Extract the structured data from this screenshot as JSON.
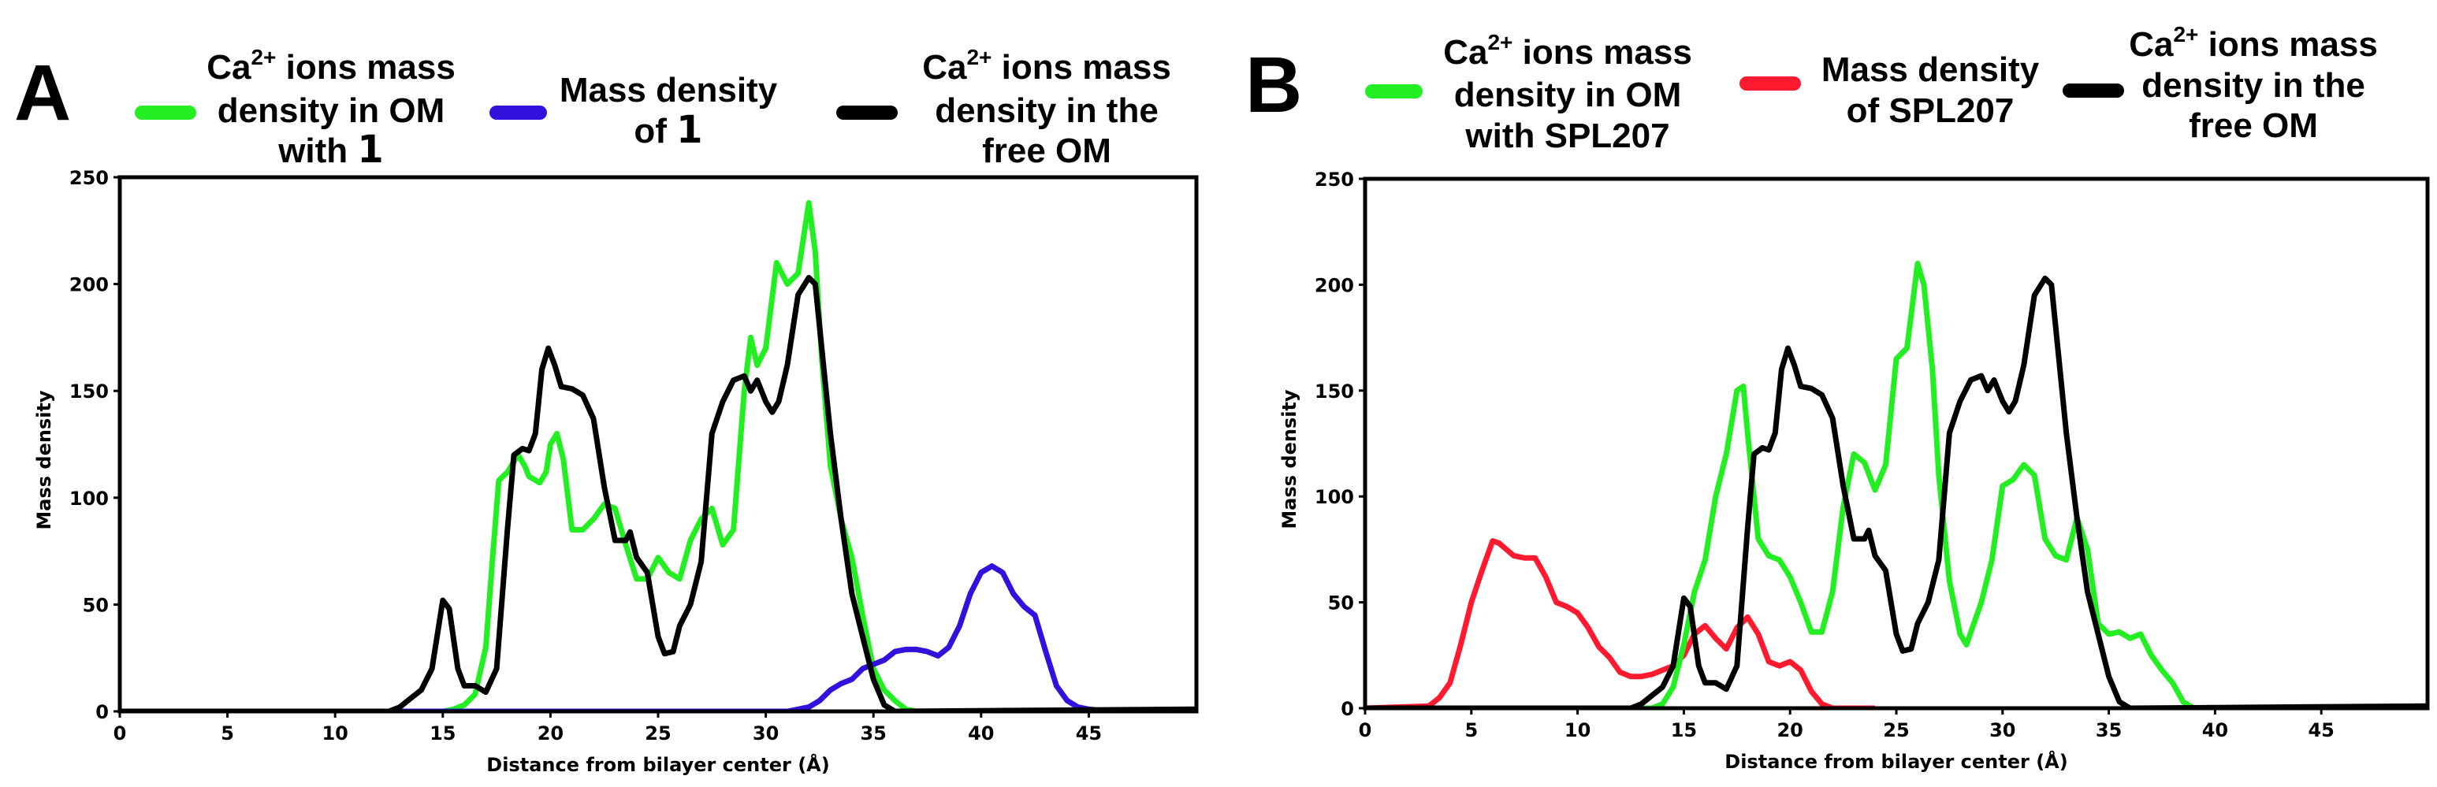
{
  "colors": {
    "green": "#22ee22",
    "blue": "#3311dd",
    "red": "#ff1a30",
    "black": "#000000"
  },
  "chart_data": [
    {
      "type": "line",
      "panel_label": "A",
      "xlabel": "Distance from bilayer center (Å)",
      "ylabel": "Mass density",
      "xlim": [
        0,
        50
      ],
      "ylim": [
        0,
        250
      ],
      "xticks": [
        0,
        5,
        10,
        15,
        20,
        25,
        30,
        35,
        40,
        45
      ],
      "yticks": [
        0,
        50,
        100,
        150,
        200,
        250
      ],
      "legend_placement": "top",
      "legend": [
        {
          "pre": "Ca",
          "sup": "2+",
          "post": " ions mass",
          "lines": [
            "density in OM"
          ],
          "last_pre": "with ",
          "last_bold": "1",
          "color": "green"
        },
        {
          "lines": [
            "Mass density"
          ],
          "last_pre": "of ",
          "last_bold": "1",
          "color": "blue"
        },
        {
          "pre": "Ca",
          "sup": "2+",
          "post": " ions mass",
          "lines": [
            "density in the"
          ],
          "last_pre": "free OM",
          "last_bold": "",
          "color": "black"
        }
      ],
      "series": [
        {
          "name": "Ca2+ ions mass density in OM with 1",
          "color": "green",
          "x": [
            0,
            15,
            15.5,
            16,
            16.5,
            17,
            17.3,
            17.6,
            18,
            18.5,
            18.8,
            19,
            19.5,
            19.8,
            20,
            20.3,
            20.6,
            21,
            21.5,
            22,
            22.5,
            23,
            23.5,
            24,
            24.5,
            25,
            25.5,
            26,
            26.5,
            27,
            27.5,
            28,
            28.5,
            29,
            29.3,
            29.6,
            30,
            30.5,
            31,
            31.5,
            32,
            32.3,
            32.6,
            33,
            33.5,
            34,
            34.5,
            35,
            35.5,
            36,
            36.5,
            37,
            50
          ],
          "y": [
            0,
            0,
            1,
            3,
            8,
            30,
            70,
            108,
            112,
            120,
            115,
            110,
            107,
            112,
            125,
            130,
            118,
            85,
            85,
            90,
            97,
            95,
            78,
            62,
            62,
            72,
            65,
            62,
            80,
            90,
            95,
            78,
            85,
            150,
            175,
            162,
            170,
            210,
            200,
            205,
            238,
            215,
            165,
            115,
            90,
            72,
            45,
            20,
            10,
            5,
            1,
            0,
            0
          ]
        },
        {
          "name": "Mass density of 1",
          "color": "blue",
          "x": [
            0,
            31,
            32,
            32.5,
            33,
            33.5,
            34,
            34.5,
            35,
            35.5,
            36,
            36.5,
            37,
            37.5,
            38,
            38.5,
            39,
            39.5,
            40,
            40.5,
            41,
            41.5,
            42,
            42.5,
            43,
            43.5,
            44,
            44.5,
            45,
            46,
            50
          ],
          "y": [
            0,
            0,
            2,
            5,
            10,
            13,
            15,
            20,
            22,
            24,
            28,
            29,
            29,
            28,
            26,
            30,
            40,
            55,
            65,
            68,
            65,
            55,
            49,
            45,
            28,
            12,
            5,
            2,
            1,
            0,
            0
          ]
        },
        {
          "name": "Ca2+ ions mass density in the free OM",
          "color": "black",
          "x": [
            0,
            12.5,
            13,
            13.5,
            14,
            14.5,
            15,
            15.3,
            15.7,
            16,
            16.5,
            17,
            17.5,
            18,
            18.3,
            18.7,
            19,
            19.3,
            19.6,
            19.9,
            20.2,
            20.5,
            21,
            21.5,
            22,
            22.5,
            23,
            23.5,
            23.7,
            24,
            24.5,
            25,
            25.3,
            25.7,
            26,
            26.5,
            27,
            27.5,
            28,
            28.5,
            29,
            29.3,
            29.6,
            30,
            30.3,
            30.6,
            31,
            31.5,
            32,
            32.3,
            32.6,
            33,
            33.5,
            34,
            34.5,
            35,
            35.5,
            36,
            50
          ],
          "y": [
            0,
            0,
            2,
            6,
            10,
            20,
            52,
            48,
            20,
            12,
            12,
            9,
            20,
            85,
            120,
            123,
            122,
            130,
            160,
            170,
            162,
            152,
            151,
            148,
            137,
            105,
            80,
            80,
            84,
            72,
            65,
            35,
            27,
            28,
            40,
            50,
            70,
            130,
            145,
            155,
            157,
            150,
            155,
            145,
            140,
            145,
            162,
            195,
            203,
            200,
            170,
            130,
            90,
            55,
            35,
            15,
            3,
            0,
            1
          ]
        }
      ]
    },
    {
      "type": "line",
      "panel_label": "B",
      "xlabel": "Distance from bilayer center (Å)",
      "ylabel": "Mass density",
      "xlim": [
        0,
        50
      ],
      "ylim": [
        0,
        250
      ],
      "xticks": [
        0,
        5,
        10,
        15,
        20,
        25,
        30,
        35,
        40,
        45
      ],
      "yticks": [
        0,
        50,
        100,
        150,
        200,
        250
      ],
      "legend_placement": "top",
      "legend": [
        {
          "pre": "Ca",
          "sup": "2+",
          "post": " ions mass",
          "lines": [
            "density in OM"
          ],
          "last_pre": "with SPL207",
          "last_bold": "",
          "color": "green"
        },
        {
          "lines": [
            "Mass density"
          ],
          "last_pre": "of SPL207",
          "last_bold": "",
          "color": "red"
        },
        {
          "pre": "Ca",
          "sup": "2+",
          "post": " ions mass",
          "lines": [
            "density in the"
          ],
          "last_pre": "free OM",
          "last_bold": "",
          "color": "black"
        }
      ],
      "series": [
        {
          "name": "Mass density of SPL207",
          "color": "red",
          "x": [
            0,
            3,
            3.5,
            4,
            4.5,
            5,
            5.5,
            6,
            6.3,
            7,
            7.5,
            8,
            8.5,
            9,
            9.5,
            10,
            10.5,
            11,
            11.5,
            12,
            12.5,
            13,
            13.5,
            14,
            14.5,
            15,
            15.5,
            16,
            16.5,
            17,
            17.5,
            18,
            18.5,
            19,
            19.5,
            20,
            20.5,
            21,
            21.5,
            22,
            24
          ],
          "y": [
            0,
            1,
            5,
            12,
            30,
            50,
            65,
            79,
            78,
            72,
            71,
            71,
            62,
            50,
            48,
            45,
            38,
            29,
            24,
            17,
            15,
            15,
            16,
            18,
            20,
            25,
            35,
            39,
            33,
            28,
            38,
            43,
            35,
            22,
            20,
            22,
            18,
            8,
            2,
            0,
            0
          ]
        },
        {
          "name": "Ca2+ ions mass density in OM with SPL207",
          "color": "green",
          "x": [
            0,
            13.5,
            14,
            14.5,
            15,
            15.5,
            16,
            16.5,
            17,
            17.5,
            17.8,
            18,
            18.5,
            19,
            19.5,
            20,
            20.5,
            21,
            21.5,
            22,
            22.5,
            23,
            23.5,
            24,
            24.5,
            25,
            25.5,
            26,
            26.3,
            26.7,
            27,
            27.5,
            28,
            28.3,
            29,
            29.5,
            30,
            30.5,
            31,
            31.5,
            32,
            32.5,
            33,
            33.5,
            34,
            34.5,
            35,
            35.5,
            36,
            36.5,
            37,
            37.5,
            38,
            38.5,
            39,
            50
          ],
          "y": [
            0,
            0,
            2,
            10,
            30,
            55,
            70,
            100,
            120,
            150,
            152,
            130,
            80,
            72,
            70,
            62,
            50,
            36,
            36,
            55,
            95,
            120,
            116,
            103,
            115,
            165,
            170,
            210,
            200,
            160,
            110,
            60,
            35,
            30,
            50,
            70,
            105,
            108,
            115,
            110,
            80,
            72,
            70,
            90,
            75,
            40,
            35,
            36,
            33,
            35,
            25,
            18,
            12,
            3,
            0,
            0
          ]
        },
        {
          "name": "Ca2+ ions mass density in the free OM",
          "color": "black",
          "x": [
            0,
            12.5,
            13,
            13.5,
            14,
            14.5,
            15,
            15.3,
            15.7,
            16,
            16.5,
            17,
            17.5,
            18,
            18.3,
            18.7,
            19,
            19.3,
            19.6,
            19.9,
            20.2,
            20.5,
            21,
            21.5,
            22,
            22.5,
            23,
            23.5,
            23.7,
            24,
            24.5,
            25,
            25.3,
            25.7,
            26,
            26.5,
            27,
            27.5,
            28,
            28.5,
            29,
            29.3,
            29.6,
            30,
            30.3,
            30.6,
            31,
            31.5,
            32,
            32.3,
            32.6,
            33,
            33.5,
            34,
            34.5,
            35,
            35.5,
            36,
            50
          ],
          "y": [
            0,
            0,
            2,
            6,
            10,
            20,
            52,
            48,
            20,
            12,
            12,
            9,
            20,
            85,
            120,
            123,
            122,
            130,
            160,
            170,
            162,
            152,
            151,
            148,
            137,
            105,
            80,
            80,
            84,
            72,
            65,
            35,
            27,
            28,
            40,
            50,
            70,
            130,
            145,
            155,
            157,
            150,
            155,
            145,
            140,
            145,
            162,
            195,
            203,
            200,
            170,
            130,
            90,
            55,
            35,
            15,
            3,
            0,
            1
          ]
        }
      ]
    }
  ]
}
